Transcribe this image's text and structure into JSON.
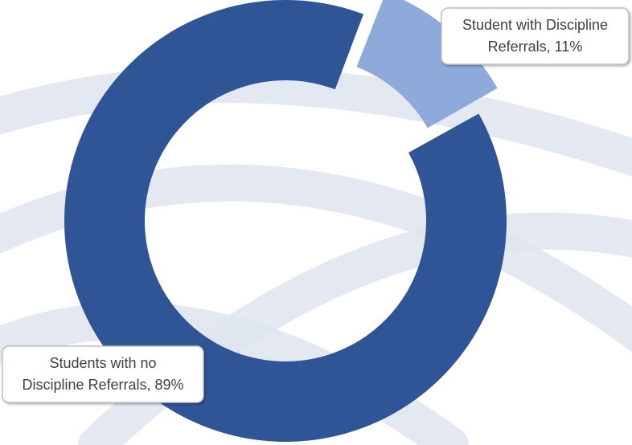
{
  "chart_data": {
    "type": "pie",
    "variant": "donut",
    "exploded": true,
    "title": "",
    "slices": [
      {
        "label": "Student with Discipline Referrals",
        "value": 11,
        "value_label": "11%",
        "color": "#8eaadb"
      },
      {
        "label": "Students with no Discipline Referrals",
        "value": 89,
        "value_label": "89%",
        "color": "#2f5597"
      }
    ],
    "legend": "none",
    "background_swoosh_color": "#dfe5ef"
  }
}
